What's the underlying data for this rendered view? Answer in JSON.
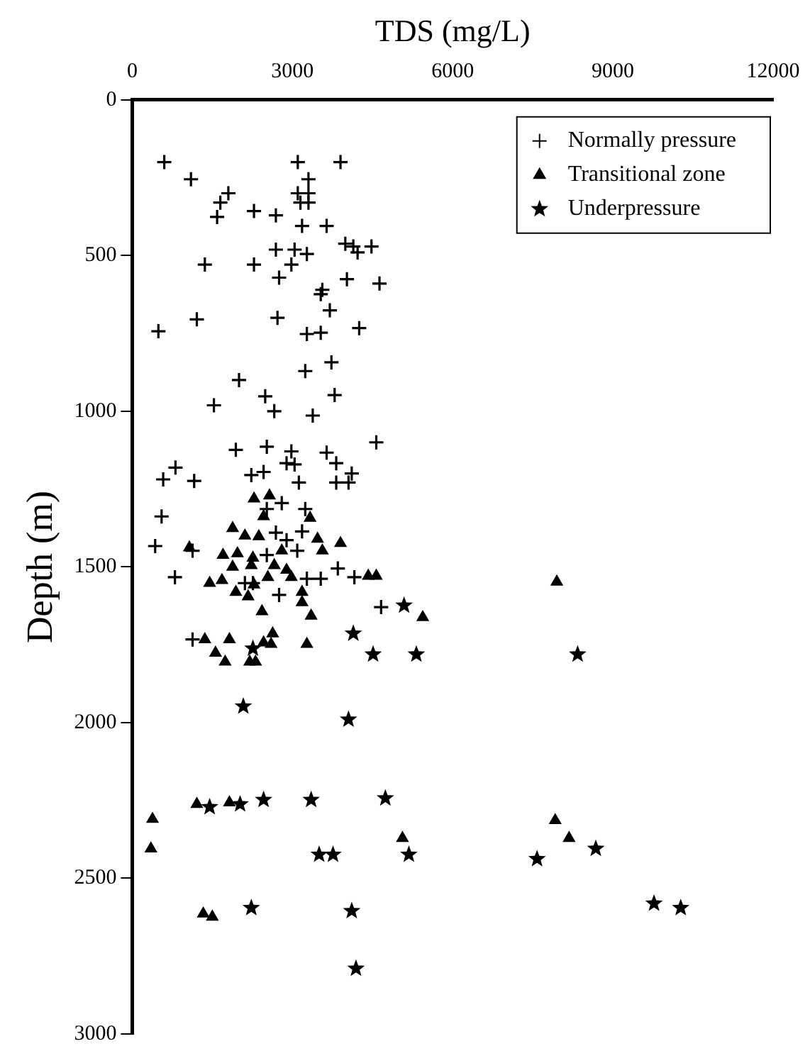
{
  "chart_data": {
    "type": "scatter",
    "xlabel": "TDS (mg/L)",
    "ylabel": "Depth (m)",
    "xlim": [
      0,
      12000
    ],
    "xticks": [
      0,
      3000,
      6000,
      9000,
      12000
    ],
    "ylim": [
      3000,
      0
    ],
    "yticks": [
      0,
      500,
      1000,
      1500,
      2000,
      2500,
      3000
    ],
    "grid": false,
    "legend": "top right",
    "series": [
      {
        "name": "Normally pressure",
        "color": "#000000",
        "marker": "cross",
        "x": [
          600,
          3100,
          3900,
          1100,
          3300,
          1800,
          3100,
          3300,
          1650,
          3150,
          3300,
          1590,
          2280,
          2690,
          3180,
          3640,
          3990,
          4140,
          4480,
          4220,
          2690,
          3040,
          3270,
          1360,
          2280,
          2980,
          2750,
          4020,
          4630,
          3560,
          3530,
          3700,
          1210,
          2720,
          490,
          3270,
          3530,
          4250,
          3730,
          3240,
          2000,
          2490,
          3790,
          1530,
          2660,
          3380,
          4570,
          1940,
          2520,
          2980,
          3640,
          2890,
          3040,
          3820,
          810,
          580,
          1160,
          2230,
          2460,
          3120,
          4110,
          3820,
          4050,
          550,
          430,
          800,
          1130,
          2800,
          3240,
          2520,
          3180,
          2690,
          2890,
          3090,
          3850,
          4160,
          3530,
          3270,
          4660,
          2750,
          1130,
          2110,
          2520,
          2260
        ],
        "values": [
          200,
          200,
          200,
          255,
          255,
          300,
          300,
          300,
          330,
          330,
          330,
          376,
          357,
          371,
          405,
          405,
          462,
          471,
          471,
          490,
          481,
          481,
          495,
          529,
          529,
          529,
          571,
          576,
          590,
          610,
          624,
          676,
          705,
          700,
          743,
          752,
          748,
          733,
          843,
          871,
          900,
          952,
          948,
          981,
          1000,
          1014,
          1100,
          1124,
          1114,
          1129,
          1133,
          1167,
          1171,
          1167,
          1181,
          1219,
          1224,
          1205,
          1195,
          1229,
          1200,
          1229,
          1229,
          1338,
          1433,
          1533,
          1733,
          1295,
          1314,
          1314,
          1386,
          1390,
          1414,
          1448,
          1505,
          1533,
          1538,
          1538,
          1629,
          1590,
          1448,
          1552,
          1462,
          1552
        ]
      },
      {
        "name": "Transitional zone",
        "color": "#000000",
        "marker": "triangle",
        "x": [
          2280,
          2570,
          2460,
          3330,
          1880,
          2110,
          2370,
          3470,
          3560,
          3900,
          1070,
          1700,
          1970,
          2260,
          2800,
          1880,
          2230,
          2660,
          2890,
          1450,
          1680,
          2540,
          2980,
          2280,
          1940,
          2170,
          3180,
          3180,
          2430,
          3350,
          4420,
          4570,
          5440,
          1360,
          1820,
          1560,
          1740,
          2200,
          2310,
          2460,
          2630,
          2600,
          3270,
          7950,
          380,
          350,
          1210,
          1820,
          5060,
          7920,
          8180,
          1330,
          1500
        ],
        "values": [
          1281,
          1271,
          1338,
          1343,
          1376,
          1400,
          1402,
          1410,
          1448,
          1424,
          1438,
          1462,
          1457,
          1471,
          1448,
          1500,
          1495,
          1495,
          1510,
          1552,
          1543,
          1533,
          1533,
          1557,
          1581,
          1595,
          1581,
          1614,
          1643,
          1657,
          1529,
          1529,
          1662,
          1733,
          1733,
          1776,
          1805,
          1805,
          1805,
          1743,
          1714,
          1748,
          1748,
          1548,
          2310,
          2405,
          2262,
          2257,
          2371,
          2314,
          2371,
          2614,
          2624
        ]
      },
      {
        "name": "Underpressure",
        "color": "#000000",
        "marker": "star",
        "x": [
          5090,
          4140,
          4510,
          5320,
          2260,
          2080,
          4050,
          8340,
          1450,
          2020,
          2460,
          3350,
          4740,
          3500,
          3760,
          5180,
          7580,
          8680,
          2230,
          4110,
          4190,
          9770,
          10270
        ],
        "values": [
          1624,
          1714,
          1781,
          1781,
          1762,
          1948,
          1990,
          1781,
          2271,
          2262,
          2248,
          2248,
          2243,
          2424,
          2424,
          2424,
          2438,
          2405,
          2595,
          2605,
          2790,
          2581,
          2595
        ]
      }
    ]
  }
}
